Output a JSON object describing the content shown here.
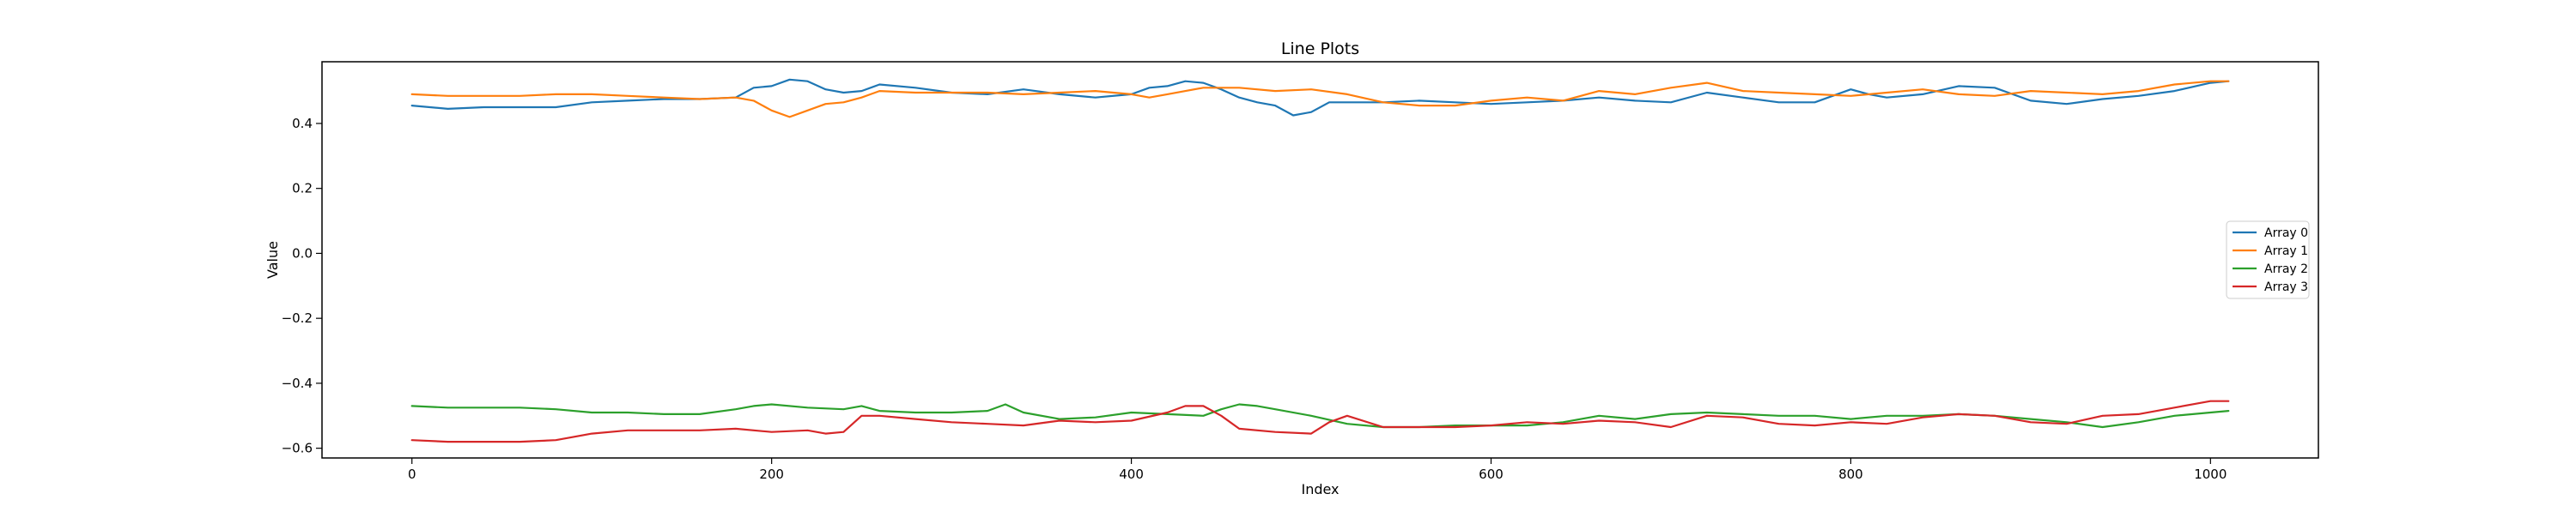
{
  "chart_data": {
    "type": "line",
    "title": "Line Plots",
    "xlabel": "Index",
    "ylabel": "Value",
    "xlim": [
      -50,
      1060
    ],
    "ylim": [
      -0.63,
      0.59
    ],
    "xticks": [
      {
        "value": 0,
        "label": "0"
      },
      {
        "value": 200,
        "label": "200"
      },
      {
        "value": 400,
        "label": "400"
      },
      {
        "value": 600,
        "label": "600"
      },
      {
        "value": 800,
        "label": "800"
      },
      {
        "value": 1000,
        "label": "1000"
      }
    ],
    "yticks": [
      {
        "value": -0.6,
        "label": "−0.6"
      },
      {
        "value": -0.4,
        "label": "−0.4"
      },
      {
        "value": -0.2,
        "label": "−0.2"
      },
      {
        "value": 0.0,
        "label": "0.0"
      },
      {
        "value": 0.2,
        "label": "0.2"
      },
      {
        "value": 0.4,
        "label": "0.4"
      }
    ],
    "grid": false,
    "legend_position": "center-right",
    "series": [
      {
        "name": "Array 0",
        "color": "#1f77b4",
        "x": [
          0,
          20,
          40,
          60,
          80,
          100,
          120,
          140,
          160,
          180,
          190,
          200,
          210,
          220,
          230,
          240,
          250,
          260,
          280,
          300,
          320,
          340,
          360,
          380,
          400,
          410,
          420,
          430,
          440,
          450,
          460,
          470,
          480,
          490,
          500,
          510,
          520,
          540,
          560,
          580,
          600,
          620,
          640,
          660,
          680,
          700,
          720,
          740,
          760,
          780,
          800,
          810,
          820,
          840,
          860,
          880,
          900,
          920,
          940,
          960,
          980,
          1000,
          1010
        ],
        "y": [
          0.455,
          0.445,
          0.45,
          0.45,
          0.45,
          0.465,
          0.47,
          0.475,
          0.475,
          0.48,
          0.51,
          0.515,
          0.535,
          0.53,
          0.505,
          0.495,
          0.5,
          0.52,
          0.51,
          0.495,
          0.49,
          0.505,
          0.49,
          0.48,
          0.49,
          0.51,
          0.515,
          0.53,
          0.525,
          0.505,
          0.48,
          0.465,
          0.455,
          0.425,
          0.435,
          0.465,
          0.465,
          0.465,
          0.47,
          0.465,
          0.46,
          0.465,
          0.47,
          0.48,
          0.47,
          0.465,
          0.495,
          0.48,
          0.465,
          0.465,
          0.505,
          0.49,
          0.48,
          0.49,
          0.515,
          0.51,
          0.47,
          0.46,
          0.475,
          0.485,
          0.5,
          0.525,
          0.53
        ]
      },
      {
        "name": "Array 1",
        "color": "#ff7f0e",
        "x": [
          0,
          20,
          40,
          60,
          80,
          100,
          120,
          140,
          160,
          180,
          190,
          200,
          210,
          220,
          230,
          240,
          250,
          260,
          280,
          300,
          320,
          340,
          360,
          380,
          400,
          410,
          420,
          440,
          460,
          480,
          500,
          520,
          540,
          560,
          580,
          600,
          620,
          640,
          660,
          680,
          700,
          720,
          740,
          760,
          780,
          800,
          820,
          840,
          860,
          880,
          900,
          920,
          940,
          960,
          980,
          1000,
          1010
        ],
        "y": [
          0.49,
          0.485,
          0.485,
          0.485,
          0.49,
          0.49,
          0.485,
          0.48,
          0.475,
          0.48,
          0.47,
          0.44,
          0.42,
          0.44,
          0.46,
          0.465,
          0.48,
          0.5,
          0.495,
          0.495,
          0.495,
          0.49,
          0.495,
          0.5,
          0.49,
          0.48,
          0.49,
          0.51,
          0.51,
          0.5,
          0.505,
          0.49,
          0.465,
          0.455,
          0.455,
          0.47,
          0.48,
          0.47,
          0.5,
          0.49,
          0.51,
          0.525,
          0.5,
          0.495,
          0.49,
          0.485,
          0.495,
          0.505,
          0.49,
          0.485,
          0.5,
          0.495,
          0.49,
          0.5,
          0.52,
          0.53,
          0.53
        ]
      },
      {
        "name": "Array 2",
        "color": "#2ca02c",
        "x": [
          0,
          20,
          40,
          60,
          80,
          100,
          120,
          140,
          160,
          180,
          190,
          200,
          220,
          240,
          250,
          260,
          280,
          300,
          320,
          330,
          340,
          360,
          380,
          400,
          420,
          440,
          450,
          460,
          470,
          480,
          500,
          520,
          540,
          560,
          580,
          600,
          620,
          640,
          660,
          680,
          700,
          720,
          740,
          760,
          780,
          800,
          820,
          840,
          860,
          880,
          900,
          920,
          940,
          960,
          980,
          1000,
          1010
        ],
        "y": [
          -0.47,
          -0.475,
          -0.475,
          -0.475,
          -0.48,
          -0.49,
          -0.49,
          -0.495,
          -0.495,
          -0.48,
          -0.47,
          -0.465,
          -0.475,
          -0.48,
          -0.47,
          -0.485,
          -0.49,
          -0.49,
          -0.485,
          -0.465,
          -0.49,
          -0.51,
          -0.505,
          -0.49,
          -0.495,
          -0.5,
          -0.48,
          -0.465,
          -0.47,
          -0.48,
          -0.5,
          -0.525,
          -0.535,
          -0.535,
          -0.53,
          -0.53,
          -0.53,
          -0.52,
          -0.5,
          -0.51,
          -0.495,
          -0.49,
          -0.495,
          -0.5,
          -0.5,
          -0.51,
          -0.5,
          -0.5,
          -0.495,
          -0.5,
          -0.51,
          -0.52,
          -0.535,
          -0.52,
          -0.5,
          -0.49,
          -0.485
        ]
      },
      {
        "name": "Array 3",
        "color": "#d62728",
        "x": [
          0,
          20,
          40,
          60,
          80,
          100,
          120,
          140,
          160,
          180,
          200,
          220,
          230,
          240,
          250,
          260,
          280,
          300,
          320,
          340,
          360,
          380,
          400,
          420,
          430,
          440,
          450,
          460,
          480,
          500,
          510,
          520,
          540,
          560,
          580,
          600,
          620,
          640,
          660,
          680,
          700,
          720,
          740,
          760,
          780,
          800,
          820,
          840,
          860,
          880,
          900,
          920,
          940,
          960,
          980,
          1000,
          1010
        ],
        "y": [
          -0.575,
          -0.58,
          -0.58,
          -0.58,
          -0.575,
          -0.555,
          -0.545,
          -0.545,
          -0.545,
          -0.54,
          -0.55,
          -0.545,
          -0.555,
          -0.55,
          -0.5,
          -0.5,
          -0.51,
          -0.52,
          -0.525,
          -0.53,
          -0.515,
          -0.52,
          -0.515,
          -0.49,
          -0.47,
          -0.47,
          -0.5,
          -0.54,
          -0.55,
          -0.555,
          -0.52,
          -0.5,
          -0.535,
          -0.535,
          -0.535,
          -0.53,
          -0.52,
          -0.525,
          -0.515,
          -0.52,
          -0.535,
          -0.5,
          -0.505,
          -0.525,
          -0.53,
          -0.52,
          -0.525,
          -0.505,
          -0.495,
          -0.5,
          -0.52,
          -0.525,
          -0.5,
          -0.495,
          -0.475,
          -0.455,
          -0.455
        ]
      }
    ]
  }
}
